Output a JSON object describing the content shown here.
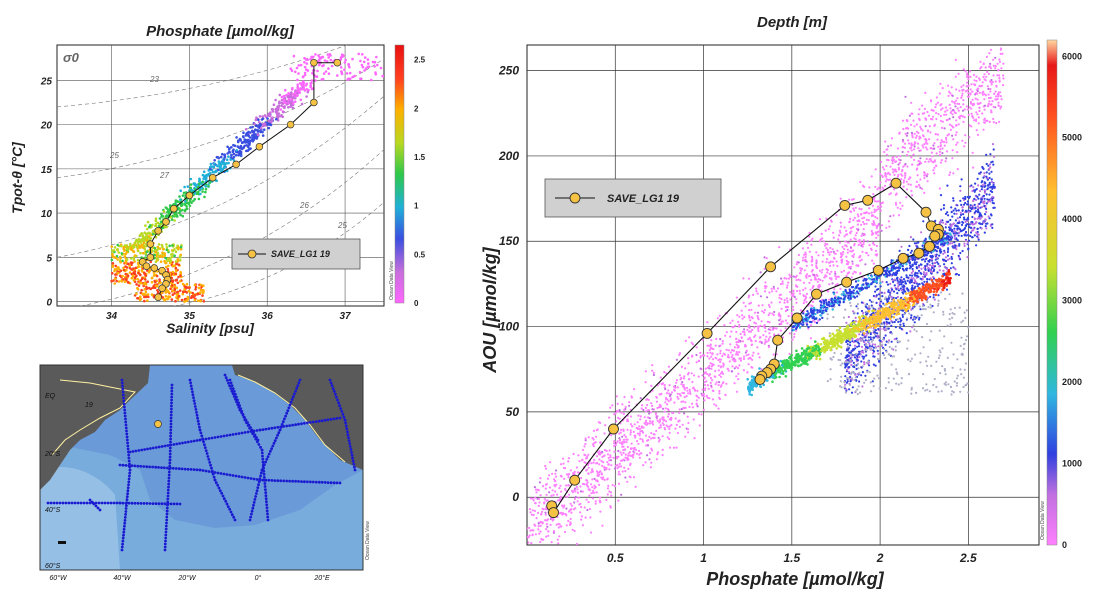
{
  "chart_data": [
    {
      "type": "scatter",
      "title": "Phosphate [µmol/kg]",
      "xlabel": "Salinity [psu]",
      "ylabel": "Tpot-θ [°C]",
      "xlim": [
        33.3,
        37.5
      ],
      "ylim": [
        -0.5,
        29
      ],
      "xticks": [
        "34",
        "35",
        "36",
        "37"
      ],
      "yticks": [
        "0",
        "5",
        "10",
        "15",
        "20",
        "25"
      ],
      "colorbar_ticks": [
        "0",
        "0.5",
        "1",
        "1.5",
        "2",
        "2.5"
      ],
      "density_label": "σ0",
      "isopycnal_labels": [
        "23",
        "25",
        "27",
        "26",
        "25"
      ],
      "legend": "SAVE_LG1 19",
      "watermark": "Ocean Data View",
      "series": [
        {
          "name": "SAVE_LG1 19",
          "x": [
            36.9,
            36.6,
            36.6,
            36.3,
            35.9,
            35.6,
            35.3,
            35.0,
            34.8,
            34.7,
            34.6,
            34.5,
            34.5,
            34.4,
            34.45,
            34.55,
            34.65,
            34.7,
            34.72,
            34.7,
            34.65,
            34.6
          ],
          "y": [
            27.0,
            27.0,
            22.5,
            20.0,
            17.5,
            15.5,
            14.0,
            12.0,
            10.5,
            9.0,
            8.0,
            6.5,
            5.0,
            4.5,
            4.0,
            3.8,
            3.5,
            3.0,
            2.5,
            2.0,
            1.5,
            0.5
          ]
        }
      ],
      "scatter": [
        {
          "x": [
            36.9,
            37.0,
            36.8,
            36.6,
            36.3,
            36.0,
            35.7,
            35.5
          ],
          "y": [
            27.5,
            26.0,
            25.0,
            23.5,
            21.5,
            19.5,
            17.5,
            16.5
          ],
          "value": 0.1
        },
        {
          "x": [
            36.4,
            36.1,
            35.8,
            35.5,
            35.3
          ],
          "y": [
            24.0,
            22.0,
            19.5,
            17.0,
            15.5
          ],
          "value": 0.6
        },
        {
          "x": [
            35.3,
            35.1,
            34.9,
            34.7,
            34.5,
            34.3
          ],
          "y": [
            14.0,
            12.5,
            11.0,
            10.0,
            8.5,
            7.5
          ],
          "value": 1.2
        },
        {
          "x": [
            34.4,
            34.2,
            34.1,
            34.0,
            34.3
          ],
          "y": [
            7.0,
            6.0,
            5.0,
            4.0,
            3.0
          ],
          "value": 1.8
        },
        {
          "x": [
            34.2,
            34.3,
            34.5,
            34.6,
            34.4,
            34.1,
            34.0
          ],
          "y": [
            3.0,
            2.5,
            2.0,
            1.5,
            1.0,
            0.6,
            2.0
          ],
          "value": 2.5
        }
      ]
    },
    {
      "type": "scatter",
      "title": "Depth [m]",
      "xlabel": "Phosphate [µmol/kg]",
      "ylabel": "AOU [µmol/kg]",
      "xlim": [
        0.0,
        2.9
      ],
      "ylim": [
        -28,
        265
      ],
      "xticks": [
        "0.5",
        "1",
        "1.5",
        "2",
        "2.5"
      ],
      "yticks": [
        "0",
        "50",
        "100",
        "150",
        "200",
        "250"
      ],
      "colorbar_ticks": [
        "0",
        "1000",
        "2000",
        "3000",
        "4000",
        "5000",
        "6000"
      ],
      "legend": "SAVE_LG1 19",
      "watermark": "Ocean Data View",
      "series": [
        {
          "name": "SAVE_LG1 19",
          "x": [
            0.14,
            0.15,
            0.27,
            0.49,
            1.02,
            1.38,
            1.8,
            1.93,
            2.09,
            2.26,
            2.29,
            2.33,
            2.33,
            2.31,
            2.28,
            2.22,
            2.13,
            1.99,
            1.81,
            1.64,
            1.53,
            1.42,
            1.4,
            1.38,
            1.36,
            1.33,
            1.32
          ],
          "y": [
            -5,
            -9,
            10,
            40,
            96,
            135,
            171,
            174,
            184,
            167,
            159,
            157,
            154,
            153,
            147,
            143,
            140,
            133,
            126,
            119,
            105,
            92,
            78,
            75,
            73,
            71,
            69
          ]
        }
      ],
      "scatter": [
        {
          "x": [
            0.1,
            0.3,
            0.6,
            0.9,
            1.2,
            1.5,
            1.8,
            2.1,
            2.4
          ],
          "y": [
            5,
            25,
            55,
            90,
            120,
            150,
            180,
            205,
            235
          ],
          "value": 300
        },
        {
          "x": [
            1.9,
            2.1,
            2.3,
            2.5
          ],
          "y": [
            110,
            130,
            150,
            165
          ],
          "value": 1000
        },
        {
          "x": [
            1.4,
            1.7,
            2.0,
            2.2
          ],
          "y": [
            75,
            95,
            115,
            125
          ],
          "value": 2500
        },
        {
          "x": [
            1.6,
            1.9,
            2.2,
            2.4
          ],
          "y": [
            95,
            110,
            120,
            128
          ],
          "value": 4500
        },
        {
          "x": [
            2.0,
            2.2,
            2.35
          ],
          "y": [
            118,
            124,
            128
          ],
          "value": 5500
        }
      ]
    }
  ],
  "map": {
    "tick_labels_lat": [
      "EQ",
      "20°S",
      "40°S",
      "60°S"
    ],
    "tick_labels_lon": [
      "60°W",
      "40°W",
      "20°W",
      "0°",
      "20°E"
    ],
    "station_label": "19",
    "watermark": "Ocean Data View"
  }
}
